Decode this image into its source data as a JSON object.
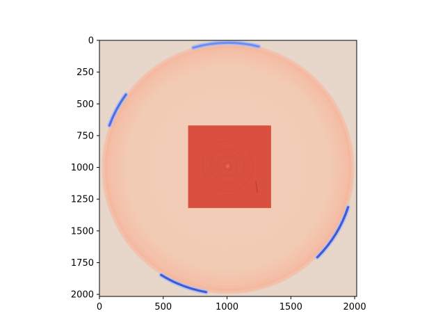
{
  "chart_data": {
    "type": "heatmap",
    "title": "",
    "xlabel": "",
    "ylabel": "",
    "colormap": "coolwarm",
    "image_extent": {
      "x": [
        0,
        2016
      ],
      "y": [
        2016,
        0
      ]
    },
    "xlim": [
      0,
      2016
    ],
    "ylim": [
      2016,
      0
    ],
    "y_inverted": true,
    "grid": false,
    "background_color": "#e7d7cb",
    "x_ticks": [
      {
        "value": 0,
        "label": "0"
      },
      {
        "value": 500,
        "label": "500"
      },
      {
        "value": 1000,
        "label": "1000"
      },
      {
        "value": 1500,
        "label": "1500"
      },
      {
        "value": 2000,
        "label": "2000"
      }
    ],
    "y_ticks": [
      {
        "value": 0,
        "label": "0"
      },
      {
        "value": 250,
        "label": "250"
      },
      {
        "value": 500,
        "label": "500"
      },
      {
        "value": 750,
        "label": "750"
      },
      {
        "value": 1000,
        "label": "1000"
      },
      {
        "value": 1250,
        "label": "1250"
      },
      {
        "value": 1500,
        "label": "1500"
      },
      {
        "value": 1750,
        "label": "1750"
      },
      {
        "value": 2000,
        "label": "2000"
      }
    ],
    "features": {
      "disk": {
        "center": [
          1008,
          1008
        ],
        "radius": 990,
        "color": "#f1cdb8"
      },
      "ring": {
        "center": [
          1008,
          1008
        ],
        "radius": 955,
        "color": "#f3b69c"
      },
      "square": {
        "x": [
          695,
          1345
        ],
        "y": [
          670,
          1320
        ],
        "color": "#d95040"
      },
      "blue_arcs": [
        {
          "center": [
            1008,
            1008
          ],
          "radius": 1000,
          "start_deg": 200,
          "end_deg": 216,
          "color": "#4f6fe8"
        },
        {
          "center": [
            1008,
            1008
          ],
          "radius": 1000,
          "start_deg": 254,
          "end_deg": 284,
          "color": "#6c8df2"
        },
        {
          "center": [
            1008,
            1008
          ],
          "radius": 1000,
          "start_deg": 18,
          "end_deg": 45,
          "color": "#3d5bd9"
        },
        {
          "center": [
            1008,
            1008
          ],
          "radius": 1000,
          "start_deg": 100,
          "end_deg": 122,
          "color": "#3d5bd9"
        }
      ]
    }
  }
}
